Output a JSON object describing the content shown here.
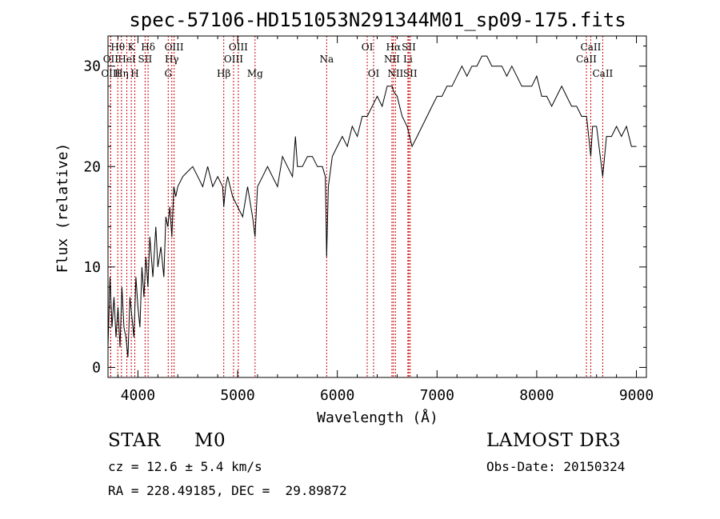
{
  "chart_data": {
    "type": "line",
    "title": "spec-57106-HD151053N291344M01_sp09-175.fits",
    "xlabel": "Wavelength (Å)",
    "ylabel": "Flux (relative)",
    "xlim": [
      3700,
      9100
    ],
    "ylim": [
      -1,
      33
    ],
    "xticks": [
      4000,
      5000,
      6000,
      7000,
      8000,
      9000
    ],
    "yticks": [
      0,
      10,
      20,
      30
    ],
    "line_color": "#000000",
    "marker_color": "#cc0000",
    "series": [
      {
        "x": [
          3700,
          3720,
          3740,
          3760,
          3780,
          3800,
          3820,
          3840,
          3860,
          3880,
          3900,
          3920,
          3940,
          3960,
          3980,
          4000,
          4020,
          4040,
          4060,
          4080,
          4100,
          4120,
          4150,
          4180,
          4200,
          4230,
          4260,
          4280,
          4300,
          4320,
          4340,
          4360,
          4380,
          4400,
          4450,
          4500,
          4550,
          4600,
          4650,
          4700,
          4750,
          4800,
          4850,
          4861,
          4880,
          4900,
          4950,
          5000,
          5050,
          5100,
          5150,
          5175,
          5200,
          5250,
          5300,
          5350,
          5400,
          5450,
          5500,
          5550,
          5580,
          5600,
          5650,
          5700,
          5750,
          5800,
          5850,
          5880,
          5893,
          5910,
          5950,
          6000,
          6050,
          6100,
          6150,
          6200,
          6250,
          6300,
          6350,
          6400,
          6450,
          6500,
          6550,
          6563,
          6600,
          6650,
          6700,
          6750,
          6800,
          6850,
          6900,
          6950,
          7000,
          7050,
          7100,
          7150,
          7200,
          7250,
          7300,
          7350,
          7400,
          7450,
          7500,
          7550,
          7600,
          7650,
          7700,
          7750,
          7800,
          7850,
          7900,
          7950,
          8000,
          8050,
          8100,
          8150,
          8200,
          8250,
          8300,
          8350,
          8400,
          8450,
          8500,
          8542,
          8560,
          8600,
          8662,
          8700,
          8750,
          8800,
          8850,
          8900,
          8950,
          9000
        ],
        "y": [
          2,
          9,
          4,
          7,
          3,
          6,
          2,
          8,
          4,
          3,
          1,
          7,
          5,
          3,
          9,
          6,
          4,
          10,
          7,
          11,
          8,
          13,
          9,
          14,
          10,
          12,
          9,
          15,
          14,
          16,
          13,
          18,
          17,
          18,
          19,
          19.5,
          20,
          19,
          18,
          20,
          18,
          19,
          18,
          16,
          18,
          19,
          17,
          16,
          15,
          18,
          15,
          13,
          18,
          19,
          20,
          19,
          18,
          21,
          20,
          19,
          23,
          20,
          20,
          21,
          21,
          20,
          20,
          19,
          11,
          18,
          21,
          22,
          23,
          22,
          24,
          23,
          25,
          25,
          26,
          27,
          26,
          28,
          28,
          27.5,
          27,
          25,
          24,
          22,
          23,
          24,
          25,
          26,
          27,
          27,
          28,
          28,
          29,
          30,
          29,
          30,
          30,
          31,
          31,
          30,
          30,
          30,
          29,
          30,
          29,
          28,
          28,
          28,
          29,
          27,
          27,
          26,
          27,
          28,
          27,
          26,
          26,
          25,
          25,
          21,
          24,
          24,
          19,
          23,
          23,
          24,
          23,
          24,
          22,
          22
        ]
      }
    ],
    "lines": [
      {
        "name": "Hθ",
        "x": 3798,
        "row": 1
      },
      {
        "name": "OII",
        "x": 3727,
        "row": 2
      },
      {
        "name": "OIII",
        "x": 3727,
        "row": 3
      },
      {
        "name": "K",
        "x": 3934,
        "row": 1
      },
      {
        "name": "HeI",
        "x": 3889,
        "row": 2
      },
      {
        "name": "Hη",
        "x": 3835,
        "row": 3
      },
      {
        "name": "H",
        "x": 3969,
        "row": 3
      },
      {
        "name": "SII",
        "x": 4072,
        "row": 2
      },
      {
        "name": "Hδ",
        "x": 4102,
        "row": 1
      },
      {
        "name": "OIII",
        "x": 4363,
        "row": 1
      },
      {
        "name": "Hγ",
        "x": 4340,
        "row": 2
      },
      {
        "name": "G",
        "x": 4304,
        "row": 3
      },
      {
        "name": "Hβ",
        "x": 4861,
        "row": 3
      },
      {
        "name": "OIII",
        "x": 5007,
        "row": 1
      },
      {
        "name": "OIII",
        "x": 4959,
        "row": 2
      },
      {
        "name": "Mg",
        "x": 5175,
        "row": 3
      },
      {
        "name": "Na",
        "x": 5893,
        "row": 2
      },
      {
        "name": "OI",
        "x": 6300,
        "row": 1
      },
      {
        "name": "OI",
        "x": 6364,
        "row": 3
      },
      {
        "name": "Hα",
        "x": 6563,
        "row": 1
      },
      {
        "name": "NII",
        "x": 6548,
        "row": 2
      },
      {
        "name": "NII",
        "x": 6583,
        "row": 3
      },
      {
        "name": "SII",
        "x": 6717,
        "row": 1
      },
      {
        "name": "Li",
        "x": 6708,
        "row": 2
      },
      {
        "name": "SII",
        "x": 6731,
        "row": 3
      },
      {
        "name": "CaII",
        "x": 8542,
        "row": 1
      },
      {
        "name": "CaII",
        "x": 8498,
        "row": 2
      },
      {
        "name": "CaII",
        "x": 8662,
        "row": 3
      }
    ]
  },
  "info": {
    "object_class": "STAR",
    "subclass": "M0",
    "survey": "LAMOST DR3",
    "cz": "cz = 12.6 ± 5.4 km/s",
    "obs_date": "Obs-Date: 20150324",
    "coords": "RA = 228.49185, DEC =  29.89872"
  }
}
